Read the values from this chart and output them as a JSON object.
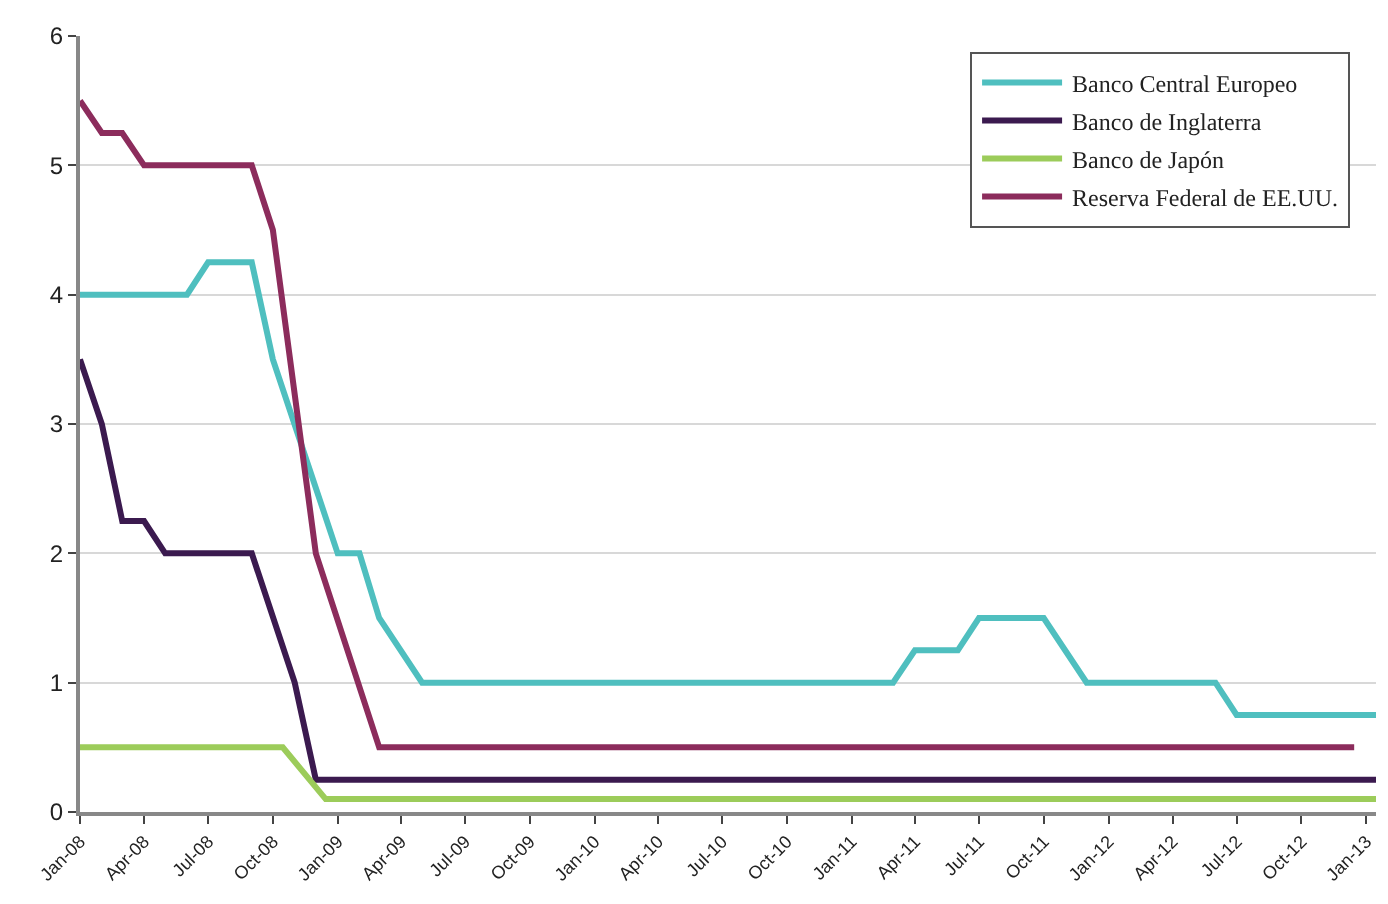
{
  "chart_data": {
    "type": "line",
    "xlim": [
      "2008-01-01",
      "2013-01-15"
    ],
    "xticks": [
      {
        "value": "2008-01-01",
        "label": "Jan-08"
      },
      {
        "value": "2008-04-01",
        "label": "Apr-08"
      },
      {
        "value": "2008-07-01",
        "label": "Jul-08"
      },
      {
        "value": "2008-10-01",
        "label": "Oct-08"
      },
      {
        "value": "2009-01-01",
        "label": "Jan-09"
      },
      {
        "value": "2009-04-01",
        "label": "Apr-09"
      },
      {
        "value": "2009-07-01",
        "label": "Jul-09"
      },
      {
        "value": "2009-10-01",
        "label": "Oct-09"
      },
      {
        "value": "2010-01-01",
        "label": "Jan-10"
      },
      {
        "value": "2010-04-01",
        "label": "Apr-10"
      },
      {
        "value": "2010-07-01",
        "label": "Jul-10"
      },
      {
        "value": "2010-10-01",
        "label": "Oct-10"
      },
      {
        "value": "2011-01-01",
        "label": "Jan-11"
      },
      {
        "value": "2011-04-01",
        "label": "Apr-11"
      },
      {
        "value": "2011-07-01",
        "label": "Jul-11"
      },
      {
        "value": "2011-10-01",
        "label": "Oct-11"
      },
      {
        "value": "2012-01-01",
        "label": "Jan-12"
      },
      {
        "value": "2012-04-01",
        "label": "Apr-12"
      },
      {
        "value": "2012-07-01",
        "label": "Jul-12"
      },
      {
        "value": "2012-10-01",
        "label": "Oct-12"
      },
      {
        "value": "2013-01-01",
        "label": "Jan-13"
      }
    ],
    "ylim": [
      0,
      6
    ],
    "yticks": [
      0,
      1,
      2,
      3,
      4,
      5,
      6
    ],
    "grid": "y",
    "legend": "top right",
    "marker": "none",
    "line_style": "solid",
    "series": [
      {
        "name": "Banco Central Europeo",
        "color": "#4fbfbf",
        "x": [
          "2008-01-01",
          "2008-06-01",
          "2008-07-01",
          "2008-09-01",
          "2008-10-01",
          "2009-01-01",
          "2009-02-01",
          "2009-03-01",
          "2009-05-01",
          "2011-03-01",
          "2011-04-01",
          "2011-06-01",
          "2011-07-01",
          "2011-10-01",
          "2011-12-01",
          "2012-06-01",
          "2012-07-01",
          "2013-01-15"
        ],
        "values": [
          4.0,
          4.0,
          4.25,
          4.25,
          3.5,
          2.0,
          2.0,
          1.5,
          1.0,
          1.0,
          1.25,
          1.25,
          1.5,
          1.5,
          1.0,
          1.0,
          0.75,
          0.75
        ]
      },
      {
        "name": "Banco de Inglaterra",
        "color": "#3b1a4f",
        "x": [
          "2008-01-01",
          "2008-02-01",
          "2008-03-01",
          "2008-04-01",
          "2008-05-01",
          "2008-09-01",
          "2008-11-01",
          "2008-12-01",
          "2013-01-15"
        ],
        "values": [
          3.5,
          3.0,
          2.25,
          2.25,
          2.0,
          2.0,
          1.0,
          0.25,
          0.25
        ]
      },
      {
        "name": "Banco de Japón",
        "color": "#9ccc5a",
        "x": [
          "2008-01-01",
          "2008-10-15",
          "2008-12-15",
          "2013-01-15"
        ],
        "values": [
          0.5,
          0.5,
          0.1,
          0.1
        ]
      },
      {
        "name": "Reserva Federal de EE.UU.",
        "color": "#8c2c5c",
        "x": [
          "2008-01-01",
          "2008-02-01",
          "2008-03-01",
          "2008-04-01",
          "2008-09-01",
          "2008-10-01",
          "2008-12-01",
          "2009-03-01",
          "2012-12-15"
        ],
        "values": [
          5.5,
          5.25,
          5.25,
          5.0,
          5.0,
          4.5,
          2.0,
          0.5,
          0.5
        ]
      }
    ]
  }
}
